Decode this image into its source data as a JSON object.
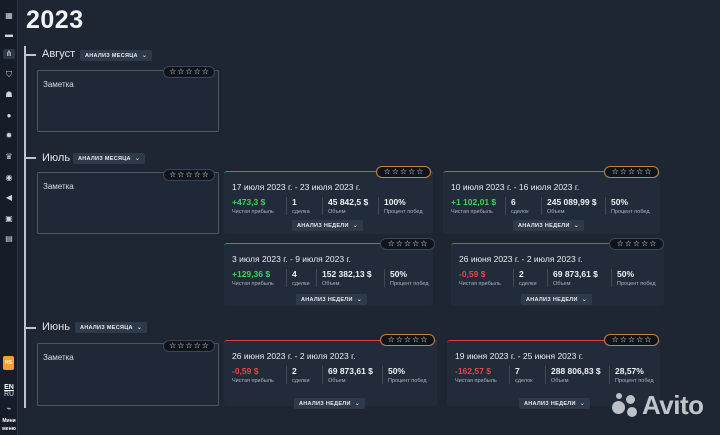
{
  "year": "2023",
  "sidebar": {
    "icons": [
      "grid-icon",
      "card-icon",
      "nodes-icon",
      "shield-icon",
      "users-icon",
      "user-icon",
      "settings-icon",
      "trophy-icon",
      "chart-icon",
      "megaphone-icon",
      "chat-icon"
    ],
    "avatar": "HS",
    "lang_en": "EN",
    "lang_ru": "RU",
    "mini_line1": "Мини",
    "mini_line2": "меню"
  },
  "months": [
    {
      "name": "Август",
      "button": "АНАЛИЗ МЕСЯЦА",
      "note": "Заметка",
      "weeks": []
    },
    {
      "name": "Июль",
      "button": "АНАЛИЗ МЕСЯЦА",
      "note": "Заметка",
      "weeks": [
        {
          "range": "17 июля 2023 г. - 23 июля 2023 г.",
          "profit": "+473,3 $",
          "profit_sign": "pos",
          "deals": "1",
          "volume": "45 842,5 $",
          "win": "100%",
          "accent": "green",
          "button": "АНАЛИЗ НЕДЕЛИ"
        },
        {
          "range": "10 июля 2023 г. - 16 июля 2023 г.",
          "profit": "+1 102,01 $",
          "profit_sign": "pos",
          "deals": "6",
          "volume": "245 089,99 $",
          "win": "50%",
          "accent": "green",
          "button": "АНАЛИЗ НЕДЕЛИ"
        },
        {
          "range": "3 июля 2023 г. - 9 июля 2023 г.",
          "profit": "+129,36 $",
          "profit_sign": "pos",
          "deals": "4",
          "volume": "152 382,13 $",
          "win": "50%",
          "accent": "green",
          "button": "АНАЛИЗ НЕДЕЛИ"
        },
        {
          "range": "26 июня 2023 г. - 2 июля 2023 г.",
          "profit": "-0,59 $",
          "profit_sign": "neg",
          "deals": "2",
          "volume": "69 873,61 $",
          "win": "50%",
          "accent": "red",
          "button": "АНАЛИЗ НЕДЕЛИ"
        }
      ]
    },
    {
      "name": "Июнь",
      "button": "АНАЛИЗ МЕСЯЦА",
      "note": "Заметка",
      "weeks": [
        {
          "range": "26 июня 2023 г. - 2 июля 2023 г.",
          "profit": "-0,59 $",
          "profit_sign": "neg",
          "deals": "2",
          "volume": "69 873,61 $",
          "win": "50%",
          "accent": "red",
          "button": "АНАЛИЗ НЕДЕЛИ"
        },
        {
          "range": "19 июня 2023 г. - 25 июня 2023 г.",
          "profit": "-162,57 $",
          "profit_sign": "neg",
          "deals": "7",
          "volume": "288 806,83 $",
          "win": "28,57%",
          "accent": "red",
          "button": "АНАЛИЗ НЕДЕЛИ"
        }
      ]
    }
  ],
  "labels": {
    "profit": "Чистая прибыль",
    "deals_july_a": "сделка",
    "deals_plural": "сделки",
    "deals_many": "сделок",
    "volume": "Объем",
    "win": "Процент побед"
  },
  "star_glyph": "☆",
  "watermark": "Avito"
}
